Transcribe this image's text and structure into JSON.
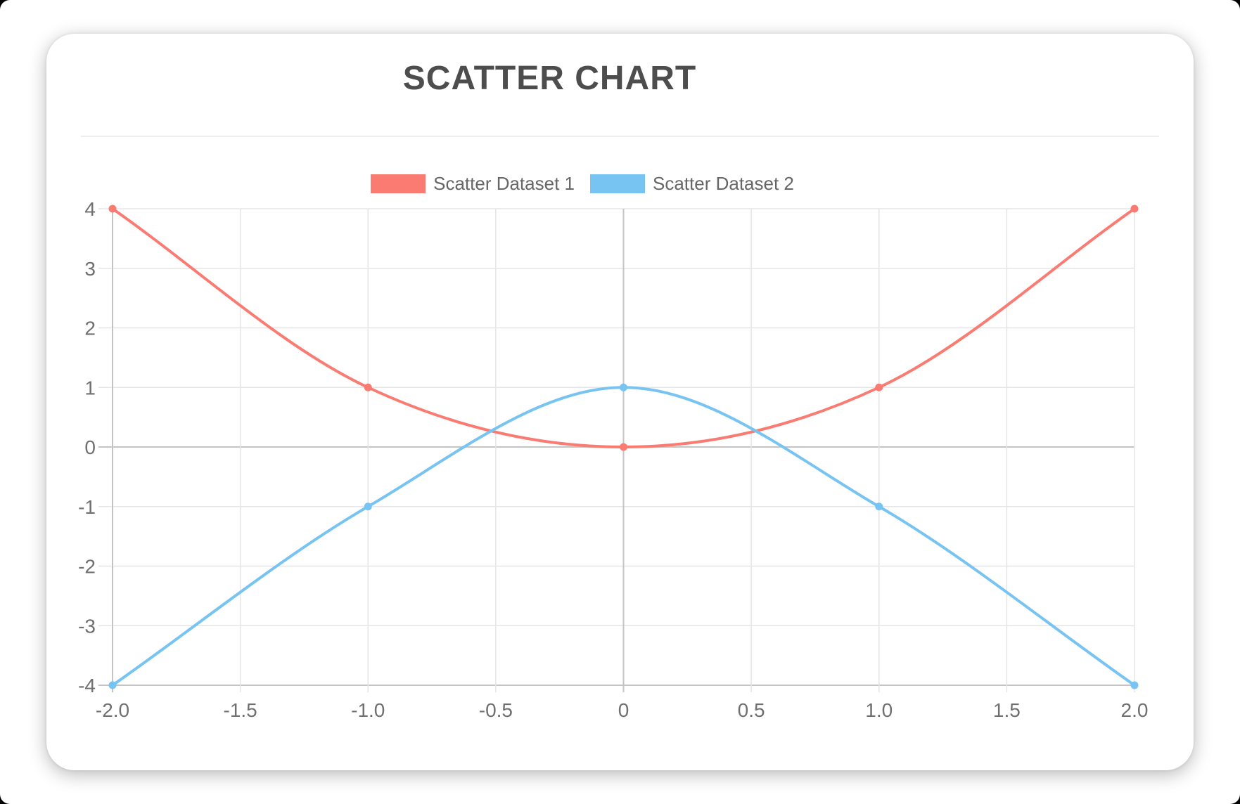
{
  "card": {
    "divider_color": "#ededed"
  },
  "chart_data": {
    "type": "scatter",
    "title": "SCATTER CHART",
    "title_color": "#4d4d4d",
    "legend_position": "top",
    "series": [
      {
        "name": "Scatter Dataset 1",
        "color": "#f97b72",
        "points": [
          [
            -2,
            4
          ],
          [
            -1,
            1
          ],
          [
            0,
            0
          ],
          [
            1,
            1
          ],
          [
            2,
            4
          ]
        ]
      },
      {
        "name": "Scatter Dataset 2",
        "color": "#77c4f2",
        "points": [
          [
            -2,
            -4
          ],
          [
            -1,
            -1
          ],
          [
            0,
            1
          ],
          [
            1,
            -1
          ],
          [
            2,
            -4
          ]
        ]
      }
    ],
    "interpolation": "monotone",
    "show_points": true,
    "point_radius": 5.5,
    "line_width": 4,
    "xlim": [
      -2,
      2
    ],
    "ylim": [
      -4,
      4
    ],
    "x_ticks": [
      "-2.0",
      "-1.5",
      "-1.0",
      "-0.5",
      "0",
      "0.5",
      "1.0",
      "1.5",
      "2.0"
    ],
    "y_ticks": [
      "4",
      "3",
      "2",
      "1",
      "0",
      "-1",
      "-2",
      "-3",
      "-4"
    ],
    "grid": true,
    "grid_color": "#e5e5e5",
    "zero_line_color": "#c4c4c4",
    "axis_line_color": "#c4c4c4",
    "tick_label_color": "#707070",
    "legend_text_color": "#666666"
  }
}
